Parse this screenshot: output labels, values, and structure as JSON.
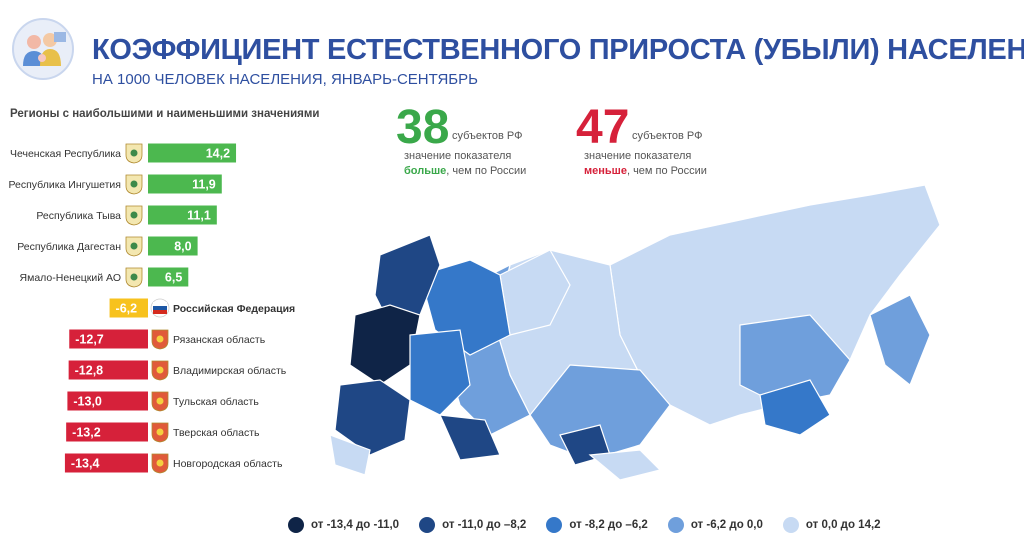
{
  "header": {
    "title": "КОЭФФИЦИЕНТ ЕСТЕСТВЕННОГО ПРИРОСТА (УБЫЛИ) НАСЕЛЕНИЯ",
    "subtitle": "НА 1000 ЧЕЛОВЕК НАСЕЛЕНИЯ, ЯНВАРЬ-СЕНТЯБРЬ"
  },
  "section_title": "Регионы с наибольшими и наименьшими значениями",
  "stats": {
    "above": {
      "value": "38",
      "unit": "субъектов РФ",
      "line1": "значение показателя",
      "emphasis": "больше",
      "line2_rest": ", чем по России",
      "color": "#3aa84a"
    },
    "below": {
      "value": "47",
      "unit": "субъектов РФ",
      "line1": "значение показателя",
      "emphasis": "меньше",
      "line2_rest": ", чем по России",
      "color": "#d6213a"
    }
  },
  "chart_data": {
    "type": "bar",
    "categories": [
      "Чеченская Республика",
      "Республика Ингушетия",
      "Республика Тыва",
      "Республика Дагестан",
      "Ямало-Ненецкий АО",
      "Российская Федерация",
      "Рязанская область",
      "Владимирская область",
      "Тульская область",
      "Тверская область",
      "Новгородская область"
    ],
    "values": [
      14.2,
      11.9,
      11.1,
      8.0,
      6.5,
      -6.2,
      -12.7,
      -12.8,
      -13.0,
      -13.2,
      -13.4
    ],
    "value_labels": [
      "14,2",
      "11,9",
      "11,1",
      "8,0",
      "6,5",
      "-6,2",
      "-12,7",
      "-12,8",
      "-13,0",
      "-13,2",
      "-13,4"
    ],
    "colors": {
      "positive": "#4cb84f",
      "national": "#f7c21e",
      "negative": "#d6213a"
    },
    "title": "",
    "xlabel": "",
    "ylabel": ""
  },
  "legend": [
    {
      "label": "от -13,4 до -11,0",
      "color": "#0f2447"
    },
    {
      "label": "от -11,0 до –8,2",
      "color": "#1f4785"
    },
    {
      "label": "от -8,2 до –6,2",
      "color": "#3578c9"
    },
    {
      "label": "от -6,2 до 0,0",
      "color": "#6f9fdc"
    },
    {
      "label": "от 0,0 до 14,2",
      "color": "#c7daf3"
    }
  ],
  "icons": {
    "logo": "family-icon",
    "flag": "russia-flag-icon",
    "emblems": "region-emblem-icon"
  }
}
